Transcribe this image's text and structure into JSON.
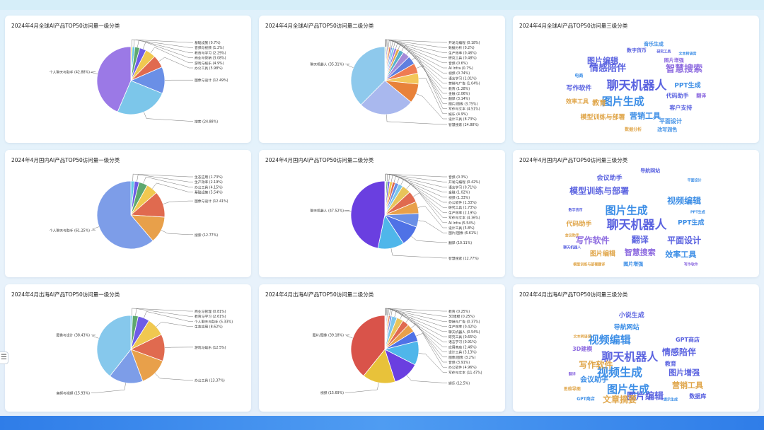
{
  "chart_data": [
    {
      "type": "pie",
      "title": "2024年4月全球AI产品TOP50访问量一级分类",
      "slices": [
        {
          "label": "基础设施",
          "value": 0.7,
          "display": "基础设施 (0.7%)",
          "color": "#e8d44d"
        },
        {
          "label": "音频与视频",
          "value": 1.2,
          "display": "音频与视频 (1.2%)",
          "color": "#63c7e8"
        },
        {
          "label": "教育与学习",
          "value": 2.29,
          "display": "教育与学习 (2.29%)",
          "color": "#5ea86f"
        },
        {
          "label": "商业与营销",
          "value": 3.08,
          "display": "商业与营销 (3.08%)",
          "color": "#6e5ce6"
        },
        {
          "label": "游戏与娱乐",
          "value": 4.9,
          "display": "游戏与娱乐 (4.9%)",
          "color": "#f0c850"
        },
        {
          "label": "办公工具",
          "value": 5.98,
          "display": "办公工具 (5.98%)",
          "color": "#e06a4f"
        },
        {
          "label": "图像与设计",
          "value": 12.49,
          "display": "图像与设计 (12.49%)",
          "color": "#6a8fe6"
        },
        {
          "label": "搜索",
          "value": 24.88,
          "display": "搜索 (24.88%)",
          "color": "#7cc6ea"
        },
        {
          "label": "个人聊天与助手",
          "value": 42.88,
          "display": "个人聊天与助手 (42.88%)",
          "color": "#9b79e6"
        }
      ]
    },
    {
      "type": "pie",
      "title": "2024年4月全球AI产品TOP50访问量二级分类",
      "slices": [
        {
          "label": "开发与编程",
          "value": 0.18,
          "display": "开发与编程 (0.18%)",
          "color": "#e8d44d"
        },
        {
          "label": "数据分析",
          "value": 0.2,
          "display": "数据分析 (0.2%)",
          "color": "#63c7e8"
        },
        {
          "label": "生产效率",
          "value": 0.46,
          "display": "生产效率 (0.46%)",
          "color": "#5ea86f"
        },
        {
          "label": "研究工具",
          "value": 0.48,
          "display": "研究工具 (0.48%)",
          "color": "#6e5ce6"
        },
        {
          "label": "音频",
          "value": 0.6,
          "display": "音频 (0.6%)",
          "color": "#f0c850"
        },
        {
          "label": "AI Infra",
          "value": 0.7,
          "display": "AI Infra (0.7%)",
          "color": "#e06a4f"
        },
        {
          "label": "视频",
          "value": 0.74,
          "display": "视频 (0.74%)",
          "color": "#6a8fe6"
        },
        {
          "label": "语言学习",
          "value": 1.01,
          "display": "语言学习 (1.01%)",
          "color": "#7cc6ea"
        },
        {
          "label": "营销与广告",
          "value": 1.04,
          "display": "营销与广告 (1.04%)",
          "color": "#9b79e6"
        },
        {
          "label": "教育",
          "value": 1.28,
          "display": "教育 (1.28%)",
          "color": "#e0a64a"
        },
        {
          "label": "金融",
          "value": 2.06,
          "display": "金融 (2.06%)",
          "color": "#56b0c9"
        },
        {
          "label": "翻译",
          "value": 3.14,
          "display": "翻译 (3.14%)",
          "color": "#a48ad8"
        },
        {
          "label": "图片/图像",
          "value": 3.75,
          "display": "图片/图像 (3.75%)",
          "color": "#5f7fe0"
        },
        {
          "label": "写作与文本",
          "value": 4.51,
          "display": "写作与文本 (4.51%)",
          "color": "#ef7b52"
        },
        {
          "label": "娱乐",
          "value": 4.9,
          "display": "娱乐 (4.9%)",
          "color": "#f3c65a"
        },
        {
          "label": "设计工具",
          "value": 8.73,
          "display": "设计工具 (8.73%)",
          "color": "#e8823a"
        },
        {
          "label": "智慧搜索",
          "value": 24.88,
          "display": "智慧搜索 (24.88%)",
          "color": "#a9b8ee"
        },
        {
          "label": "聊天机器人",
          "value": 35.31,
          "display": "聊天机器人 (35.31%)",
          "color": "#8ec9ec"
        }
      ]
    },
    {
      "type": "wordcloud",
      "title": "2024年4月全球AI产品TOP50访问量三级分类",
      "words": [
        {
          "text": "聊天机器人",
          "size": 17,
          "color": "#5a62e0"
        },
        {
          "text": "图片生成",
          "size": 15,
          "color": "#3c8ee6"
        },
        {
          "text": "情感陪伴",
          "size": 13,
          "color": "#5a62e0"
        },
        {
          "text": "智慧搜索",
          "size": 13,
          "color": "#8e6ce0"
        },
        {
          "text": "图片编辑",
          "size": 11,
          "color": "#5a62e0"
        },
        {
          "text": "营销工具",
          "size": 11,
          "color": "#3c8ee6"
        },
        {
          "text": "教育",
          "size": 10,
          "color": "#e0a64a"
        },
        {
          "text": "写作软件",
          "size": 9,
          "color": "#5a62e0"
        },
        {
          "text": "PPT生成",
          "size": 9,
          "color": "#3c8ee6"
        },
        {
          "text": "模型训练与部署",
          "size": 9,
          "color": "#e0a64a"
        },
        {
          "text": "代码助手",
          "size": 8,
          "color": "#5a62e0"
        },
        {
          "text": "效率工具",
          "size": 8,
          "color": "#e0a64a"
        },
        {
          "text": "客户支持",
          "size": 8,
          "color": "#5a62e0"
        },
        {
          "text": "平面设计",
          "size": 8,
          "color": "#3c8ee6"
        },
        {
          "text": "音乐生成",
          "size": 7,
          "color": "#3c8ee6"
        },
        {
          "text": "数字货币",
          "size": 7,
          "color": "#5a62e0"
        },
        {
          "text": "图片增强",
          "size": 7,
          "color": "#8e6ce0"
        },
        {
          "text": "改写润色",
          "size": 7,
          "color": "#3c8ee6"
        },
        {
          "text": "翻译",
          "size": 7,
          "color": "#8e6ce0"
        },
        {
          "text": "电商",
          "size": 6,
          "color": "#3c8ee6"
        },
        {
          "text": "数据分析",
          "size": 6,
          "color": "#e0a64a"
        },
        {
          "text": "研究工具",
          "size": 5,
          "color": "#5a62e0"
        },
        {
          "text": "文本转语音",
          "size": 5,
          "color": "#3c8ee6"
        }
      ]
    },
    {
      "type": "pie",
      "title": "2024年4月国内AI产品TOP50访问量一级分类",
      "slices": [
        {
          "label": "生态应用",
          "value": 1.73,
          "display": "生态应用 (1.73%)",
          "color": "#63c7e8"
        },
        {
          "label": "生产效率",
          "value": 2.19,
          "display": "生产效率 (2.19%)",
          "color": "#6e5ce6"
        },
        {
          "label": "办公工具",
          "value": 4.15,
          "display": "办公工具 (4.15%)",
          "color": "#5ea86f"
        },
        {
          "label": "基础设施",
          "value": 5.54,
          "display": "基础设施 (5.54%)",
          "color": "#f0c850"
        },
        {
          "label": "图像与设计",
          "value": 12.41,
          "display": "图像与设计 (12.41%)",
          "color": "#e06a4f"
        },
        {
          "label": "搜索",
          "value": 12.77,
          "display": "搜索 (12.77%)",
          "color": "#e8a04a"
        },
        {
          "label": "个人聊天与助手",
          "value": 61.25,
          "display": "个人聊天与助手 (61.25%)",
          "color": "#7d9de8"
        }
      ]
    },
    {
      "type": "pie",
      "title": "2024年4月国内AI产品TOP50访问量二级分类",
      "slices": [
        {
          "label": "音频",
          "value": 0.3,
          "display": "音频 (0.3%)",
          "color": "#e8d44d"
        },
        {
          "label": "开发与编程",
          "value": 0.42,
          "display": "开发与编程 (0.42%)",
          "color": "#63c7e8"
        },
        {
          "label": "语言学习",
          "value": 0.71,
          "display": "语言学习 (0.71%)",
          "color": "#5ea86f"
        },
        {
          "label": "金融",
          "value": 1.02,
          "display": "金融 (1.02%)",
          "color": "#6e5ce6"
        },
        {
          "label": "视频",
          "value": 1.33,
          "display": "视频 (1.33%)",
          "color": "#f0c850"
        },
        {
          "label": "办公软件",
          "value": 1.33,
          "display": "办公软件 (1.33%)",
          "color": "#e06a4f"
        },
        {
          "label": "研究工具",
          "value": 1.73,
          "display": "研究工具 (1.73%)",
          "color": "#6a8fe6"
        },
        {
          "label": "生产效率",
          "value": 2.19,
          "display": "生产效率 (2.19%)",
          "color": "#7cc6ea"
        },
        {
          "label": "写作与文本",
          "value": 4.36,
          "display": "写作与文本 (4.36%)",
          "color": "#e8c45a"
        },
        {
          "label": "AI Infra",
          "value": 5.54,
          "display": "AI Infra (5.54%)",
          "color": "#e06a4f"
        },
        {
          "label": "设计工具",
          "value": 5.8,
          "display": "设计工具 (5.8%)",
          "color": "#e8a04a"
        },
        {
          "label": "图片/图像",
          "value": 6.61,
          "display": "图片/图像 (6.61%)",
          "color": "#6a8fe6"
        },
        {
          "label": "翻译",
          "value": 10.11,
          "display": "翻译 (10.11%)",
          "color": "#4f72e6"
        },
        {
          "label": "智慧搜索",
          "value": 12.77,
          "display": "智慧搜索 (12.77%)",
          "color": "#4fb6ea"
        },
        {
          "label": "聊天机器人",
          "value": 47.52,
          "display": "聊天机器人 (47.52%)",
          "color": "#6a3fe0"
        }
      ]
    },
    {
      "type": "wordcloud",
      "title": "2024年4月国内AI产品TOP50访问量三级分类",
      "words": [
        {
          "text": "聊天机器人",
          "size": 17,
          "color": "#5a62e0"
        },
        {
          "text": "图片生成",
          "size": 15,
          "color": "#3c8ee6"
        },
        {
          "text": "模型训练与部署",
          "size": 12,
          "color": "#5a62e0"
        },
        {
          "text": "视频编辑",
          "size": 12,
          "color": "#3c8ee6"
        },
        {
          "text": "写作软件",
          "size": 12,
          "color": "#8e6ce0"
        },
        {
          "text": "翻译",
          "size": 12,
          "color": "#5a62e0"
        },
        {
          "text": "平面设计",
          "size": 12,
          "color": "#5a62e0"
        },
        {
          "text": "智慧搜索",
          "size": 11,
          "color": "#8e6ce0"
        },
        {
          "text": "效率工具",
          "size": 11,
          "color": "#3c8ee6"
        },
        {
          "text": "会议助手",
          "size": 9,
          "color": "#5a62e0"
        },
        {
          "text": "PPT生成",
          "size": 9,
          "color": "#3c8ee6"
        },
        {
          "text": "代码助手",
          "size": 9,
          "color": "#e0a64a"
        },
        {
          "text": "图片编辑",
          "size": 9,
          "color": "#e0a64a"
        },
        {
          "text": "导航网站",
          "size": 7,
          "color": "#5a62e0"
        },
        {
          "text": "图片增强",
          "size": 7,
          "color": "#3c8ee6"
        },
        {
          "text": "模型训练与部署翻译",
          "size": 5,
          "color": "#e0a64a"
        },
        {
          "text": "写作软件",
          "size": 5,
          "color": "#8e6ce0"
        },
        {
          "text": "平面设计",
          "size": 5,
          "color": "#3c8ee6"
        },
        {
          "text": "会议助手",
          "size": 5,
          "color": "#e0a64a"
        },
        {
          "text": "数字货币",
          "size": 5,
          "color": "#5a62e0"
        },
        {
          "text": "PPT生成",
          "size": 5,
          "color": "#3c8ee6"
        },
        {
          "text": "聊天机器人",
          "size": 5,
          "color": "#5a62e0"
        }
      ]
    },
    {
      "type": "pie",
      "title": "2024年4月出海AI产品TOP50访问量一级分类",
      "slices": [
        {
          "label": "商业与管理",
          "value": 0.81,
          "display": "商业与管理 (0.81%)",
          "color": "#63c7e8"
        },
        {
          "label": "教育与学习",
          "value": 2.61,
          "display": "教育与学习 (2.61%)",
          "color": "#5ea86f"
        },
        {
          "label": "个人聊天与助手",
          "value": 5.33,
          "display": "个人聊天与助手 (5.33%)",
          "color": "#6e5ce6"
        },
        {
          "label": "生态应用",
          "value": 8.62,
          "display": "生态应用 (8.62%)",
          "color": "#f0c850"
        },
        {
          "label": "游戏与娱乐",
          "value": 12.5,
          "display": "游戏与娱乐 (12.5%)",
          "color": "#e06a4f"
        },
        {
          "label": "办公工具",
          "value": 13.37,
          "display": "办公工具 (13.37%)",
          "color": "#e8a04a"
        },
        {
          "label": "音频与视频",
          "value": 15.93,
          "display": "音频与视频 (15.93%)",
          "color": "#7d9de8"
        },
        {
          "label": "图像与设计",
          "value": 38.43,
          "display": "图像与设计 (38.43%)",
          "color": "#86c8ec"
        }
      ]
    },
    {
      "type": "pie",
      "title": "2024年4月出海AI产品TOP50访问量二级分类",
      "slices": [
        {
          "label": "教育",
          "value": 0.25,
          "display": "教育 (0.25%)",
          "color": "#e8d44d"
        },
        {
          "label": "3D建模",
          "value": 0.25,
          "display": "3D建模 (0.25%)",
          "color": "#63c7e8"
        },
        {
          "label": "营销与广告",
          "value": 0.37,
          "display": "营销与广告 (0.37%)",
          "color": "#5ea86f"
        },
        {
          "label": "生产效率",
          "value": 0.42,
          "display": "生产效率 (0.42%)",
          "color": "#6e5ce6"
        },
        {
          "label": "聊天机器人",
          "value": 0.54,
          "display": "聊天机器人 (0.54%)",
          "color": "#f0c850"
        },
        {
          "label": "研究工具",
          "value": 0.65,
          "display": "研究工具 (0.65%)",
          "color": "#e06a4f"
        },
        {
          "label": "语言学习",
          "value": 0.91,
          "display": "语言学习 (0.91%)",
          "color": "#6a8fe6"
        },
        {
          "label": "应用商店",
          "value": 2.46,
          "display": "应用商店 (2.46%)",
          "color": "#7cc6ea"
        },
        {
          "label": "设计工具",
          "value": 3.13,
          "display": "设计工具 (3.13%)",
          "color": "#e8c45a"
        },
        {
          "label": "图像/图像",
          "value": 3.2,
          "display": "图像/图像 (3.2%)",
          "color": "#e06a4f"
        },
        {
          "label": "音频",
          "value": 3.91,
          "display": "音频 (3.91%)",
          "color": "#e8a04a"
        },
        {
          "label": "办公软件",
          "value": 4.96,
          "display": "办公软件 (4.96%)",
          "color": "#4f72e6"
        },
        {
          "label": "写作与文本",
          "value": 11.47,
          "display": "写作与文本 (11.47%)",
          "color": "#4fb6ea"
        },
        {
          "label": "娱乐",
          "value": 12.5,
          "display": "娱乐 (12.5%)",
          "color": "#6a3fe0"
        },
        {
          "label": "视频",
          "value": 15.69,
          "display": "视频 (15.69%)",
          "color": "#e8c23a"
        },
        {
          "label": "图片/图像",
          "value": 39.18,
          "display": "图片/图像 (39.18%)",
          "color": "#d9534a"
        }
      ]
    },
    {
      "type": "wordcloud",
      "title": "2024年4月出海AI产品TOP50访问量三级分类",
      "words": [
        {
          "text": "聊天机器人",
          "size": 16,
          "color": "#5a62e0"
        },
        {
          "text": "视频生成",
          "size": 16,
          "color": "#3c8ee6"
        },
        {
          "text": "视频编辑",
          "size": 15,
          "color": "#3c8ee6"
        },
        {
          "text": "图片生成",
          "size": 15,
          "color": "#3c8ee6"
        },
        {
          "text": "图片编辑",
          "size": 13,
          "color": "#5a62e0"
        },
        {
          "text": "写作软件",
          "size": 12,
          "color": "#e0a64a"
        },
        {
          "text": "情感陪伴",
          "size": 12,
          "color": "#5a62e0"
        },
        {
          "text": "文章摘要",
          "size": 12,
          "color": "#e0a64a"
        },
        {
          "text": "图片增强",
          "size": 11,
          "color": "#5a62e0"
        },
        {
          "text": "营销工具",
          "size": 11,
          "color": "#e0a64a"
        },
        {
          "text": "会议助手",
          "size": 10,
          "color": "#3c8ee6"
        },
        {
          "text": "小说生成",
          "size": 9,
          "color": "#5a62e0"
        },
        {
          "text": "导航网站",
          "size": 9,
          "color": "#3c8ee6"
        },
        {
          "text": "GPT商店",
          "size": 8,
          "color": "#5a62e0"
        },
        {
          "text": "3D建模",
          "size": 8,
          "color": "#8e6ce0"
        },
        {
          "text": "教育",
          "size": 8,
          "color": "#5a62e0"
        },
        {
          "text": "数据库",
          "size": 8,
          "color": "#5a62e0"
        },
        {
          "text": "思维导图",
          "size": 6,
          "color": "#e0a64a"
        },
        {
          "text": "GPT商店",
          "size": 6,
          "color": "#3c8ee6"
        },
        {
          "text": "文本转语音",
          "size": 5,
          "color": "#e0a64a"
        },
        {
          "text": "翻译",
          "size": 5,
          "color": "#8e6ce0"
        },
        {
          "text": "提示生成",
          "size": 5,
          "color": "#3c8ee6"
        }
      ]
    }
  ],
  "side_tab": {
    "label": "☰"
  }
}
